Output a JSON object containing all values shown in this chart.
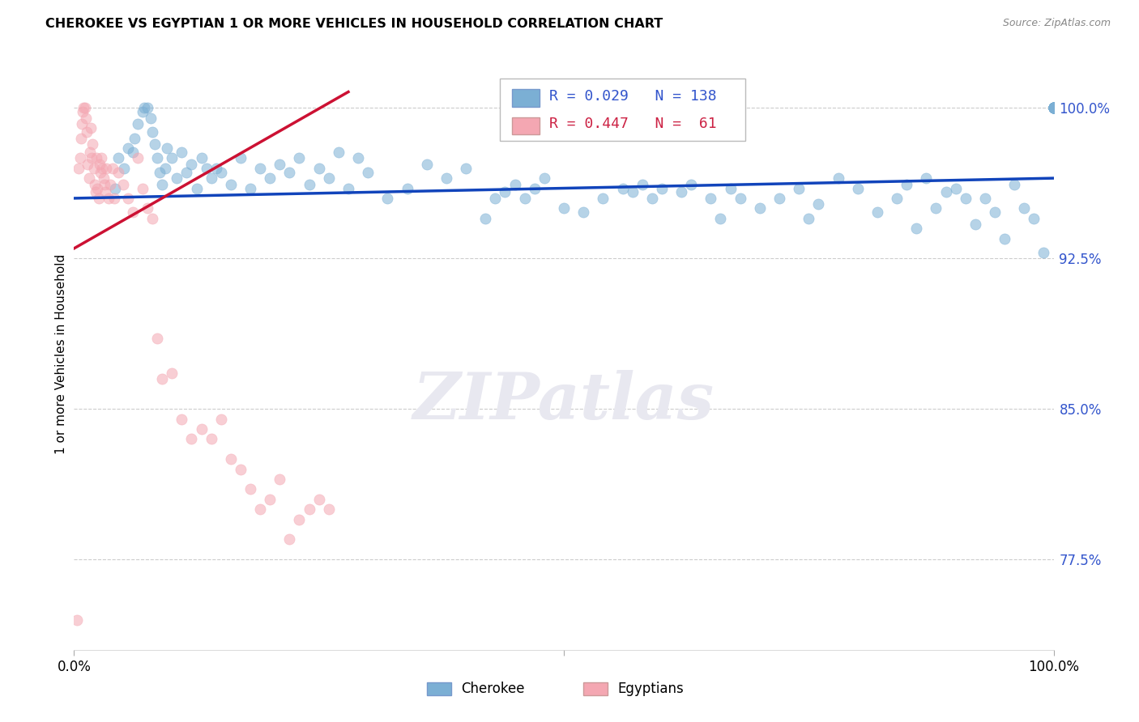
{
  "title": "CHEROKEE VS EGYPTIAN 1 OR MORE VEHICLES IN HOUSEHOLD CORRELATION CHART",
  "source": "Source: ZipAtlas.com",
  "ylabel": "1 or more Vehicles in Household",
  "ytick_labels": [
    "77.5%",
    "85.0%",
    "92.5%",
    "100.0%"
  ],
  "ytick_values": [
    77.5,
    85.0,
    92.5,
    100.0
  ],
  "xrange": [
    0.0,
    100.0
  ],
  "yrange": [
    73.0,
    102.5
  ],
  "legend_blue_r": "0.029",
  "legend_blue_n": "138",
  "legend_pink_r": "0.447",
  "legend_pink_n": " 61",
  "blue_color": "#7BAFD4",
  "pink_color": "#F4A7B2",
  "trend_blue_color": "#1144BB",
  "trend_pink_color": "#CC1133",
  "watermark": "ZIPatlas",
  "blue_x": [
    4.2,
    4.5,
    5.1,
    5.5,
    6.0,
    6.2,
    6.5,
    7.0,
    7.2,
    7.5,
    7.8,
    8.0,
    8.2,
    8.5,
    8.7,
    9.0,
    9.3,
    9.5,
    10.0,
    10.5,
    11.0,
    11.5,
    12.0,
    12.5,
    13.0,
    13.5,
    14.0,
    14.5,
    15.0,
    16.0,
    17.0,
    18.0,
    19.0,
    20.0,
    21.0,
    22.0,
    23.0,
    24.0,
    25.0,
    26.0,
    27.0,
    28.0,
    29.0,
    30.0,
    32.0,
    34.0,
    36.0,
    38.0,
    40.0,
    42.0,
    43.0,
    44.0,
    45.0,
    46.0,
    47.0,
    48.0,
    50.0,
    52.0,
    54.0,
    56.0,
    57.0,
    58.0,
    59.0,
    60.0,
    62.0,
    63.0,
    65.0,
    66.0,
    67.0,
    68.0,
    70.0,
    72.0,
    74.0,
    75.0,
    76.0,
    78.0,
    80.0,
    82.0,
    84.0,
    85.0,
    86.0,
    87.0,
    88.0,
    89.0,
    90.0,
    91.0,
    92.0,
    93.0,
    94.0,
    95.0,
    96.0,
    97.0,
    98.0,
    99.0,
    100.0,
    100.0,
    100.0,
    100.0,
    100.0,
    100.0,
    100.0,
    100.0,
    100.0,
    100.0,
    100.0,
    100.0,
    100.0,
    100.0,
    100.0,
    100.0,
    100.0,
    100.0,
    100.0,
    100.0,
    100.0,
    100.0,
    100.0,
    100.0,
    100.0,
    100.0,
    100.0,
    100.0,
    100.0,
    100.0,
    100.0,
    100.0,
    100.0,
    100.0,
    100.0,
    100.0,
    100.0,
    100.0,
    100.0,
    100.0,
    100.0,
    100.0,
    100.0,
    100.0
  ],
  "blue_y": [
    96.0,
    97.5,
    97.0,
    98.0,
    97.8,
    98.5,
    99.2,
    99.8,
    100.0,
    100.0,
    99.5,
    98.8,
    98.2,
    97.5,
    96.8,
    96.2,
    97.0,
    98.0,
    97.5,
    96.5,
    97.8,
    96.8,
    97.2,
    96.0,
    97.5,
    97.0,
    96.5,
    97.0,
    96.8,
    96.2,
    97.5,
    96.0,
    97.0,
    96.5,
    97.2,
    96.8,
    97.5,
    96.2,
    97.0,
    96.5,
    97.8,
    96.0,
    97.5,
    96.8,
    95.5,
    96.0,
    97.2,
    96.5,
    97.0,
    94.5,
    95.5,
    95.8,
    96.2,
    95.5,
    96.0,
    96.5,
    95.0,
    94.8,
    95.5,
    96.0,
    95.8,
    96.2,
    95.5,
    96.0,
    95.8,
    96.2,
    95.5,
    94.5,
    96.0,
    95.5,
    95.0,
    95.5,
    96.0,
    94.5,
    95.2,
    96.5,
    96.0,
    94.8,
    95.5,
    96.2,
    94.0,
    96.5,
    95.0,
    95.8,
    96.0,
    95.5,
    94.2,
    95.5,
    94.8,
    93.5,
    96.2,
    95.0,
    94.5,
    92.8,
    100.0,
    100.0,
    100.0,
    100.0,
    100.0,
    100.0,
    100.0,
    100.0,
    100.0,
    100.0,
    100.0,
    100.0,
    100.0,
    100.0,
    100.0,
    100.0,
    100.0,
    100.0,
    100.0,
    100.0,
    100.0,
    100.0,
    100.0,
    100.0,
    100.0,
    100.0,
    100.0,
    100.0,
    100.0,
    100.0,
    100.0,
    100.0,
    100.0,
    100.0,
    100.0,
    100.0,
    100.0,
    100.0,
    100.0,
    100.0,
    100.0,
    100.0,
    100.0,
    100.0
  ],
  "pink_x": [
    0.3,
    0.5,
    0.6,
    0.7,
    0.8,
    0.9,
    1.0,
    1.1,
    1.2,
    1.3,
    1.4,
    1.5,
    1.6,
    1.7,
    1.8,
    1.9,
    2.0,
    2.1,
    2.2,
    2.3,
    2.4,
    2.5,
    2.6,
    2.7,
    2.8,
    2.9,
    3.0,
    3.1,
    3.2,
    3.3,
    3.5,
    3.7,
    3.9,
    4.1,
    4.5,
    5.0,
    5.5,
    6.0,
    6.5,
    7.0,
    7.5,
    8.0,
    8.5,
    9.0,
    10.0,
    11.0,
    12.0,
    13.0,
    14.0,
    15.0,
    16.0,
    17.0,
    18.0,
    19.0,
    20.0,
    21.0,
    22.0,
    23.0,
    24.0,
    25.0,
    26.0
  ],
  "pink_y": [
    74.5,
    97.0,
    97.5,
    98.5,
    99.2,
    99.8,
    100.0,
    100.0,
    99.5,
    98.8,
    97.2,
    96.5,
    97.8,
    99.0,
    97.5,
    98.2,
    97.0,
    96.2,
    95.8,
    97.5,
    96.0,
    95.5,
    97.2,
    96.8,
    97.5,
    97.0,
    96.5,
    96.2,
    95.8,
    97.0,
    95.5,
    96.2,
    97.0,
    95.5,
    96.8,
    96.2,
    95.5,
    94.8,
    97.5,
    96.0,
    95.0,
    94.5,
    88.5,
    86.5,
    86.8,
    84.5,
    83.5,
    84.0,
    83.5,
    84.5,
    82.5,
    82.0,
    81.0,
    80.0,
    80.5,
    81.5,
    78.5,
    79.5,
    80.0,
    80.5,
    80.0
  ],
  "blue_trend_x": [
    0.0,
    100.0
  ],
  "blue_trend_y": [
    95.5,
    96.5
  ],
  "pink_trend_x": [
    0.0,
    28.0
  ],
  "pink_trend_y": [
    93.0,
    100.8
  ]
}
